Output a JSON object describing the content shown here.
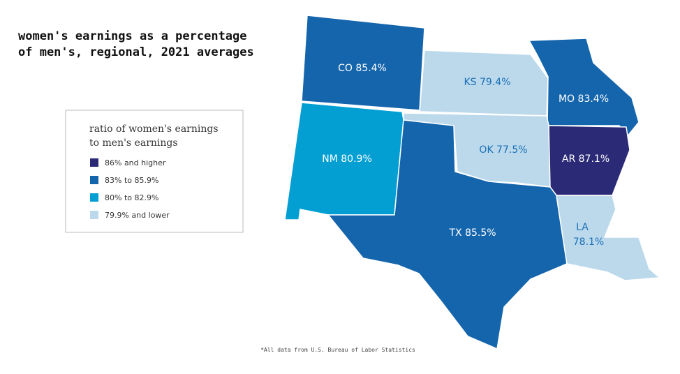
{
  "title_lines": [
    "women's earnings as a percentage",
    "of men's, regional, 2021 averages"
  ],
  "legend": {
    "title_lines": [
      "ratio of women's earnings",
      "to men's earnings"
    ],
    "items": [
      {
        "label": "86% and higher",
        "color": "#2b2a76"
      },
      {
        "label": "83% to 85.9%",
        "color": "#1565ac"
      },
      {
        "label": "80% to 82.9%",
        "color": "#039fd3"
      },
      {
        "label": "79.9% and lower",
        "color": "#bcd9ec"
      }
    ]
  },
  "states": [
    {
      "abbr": "CO",
      "value": 85.4,
      "value_label": "85.4%",
      "color": "#1565ac"
    },
    {
      "abbr": "KS",
      "value": 79.4,
      "value_label": "79.4%",
      "color": "#bcd9ec"
    },
    {
      "abbr": "MO",
      "value": 83.4,
      "value_label": "83.4%",
      "color": "#1565ac"
    },
    {
      "abbr": "NM",
      "value": 80.9,
      "value_label": "80.9%",
      "color": "#039fd3"
    },
    {
      "abbr": "OK",
      "value": 77.5,
      "value_label": "77.5%",
      "color": "#bcd9ec"
    },
    {
      "abbr": "AR",
      "value": 87.1,
      "value_label": "87.1%",
      "color": "#2b2a76"
    },
    {
      "abbr": "TX",
      "value": 85.5,
      "value_label": "85.5%",
      "color": "#1565ac"
    },
    {
      "abbr": "LA",
      "value": 78.1,
      "value_label": "78.1%",
      "color": "#bcd9ec"
    }
  ],
  "footnote": "*All data from U.S. Bureau of Labor Statistics"
}
